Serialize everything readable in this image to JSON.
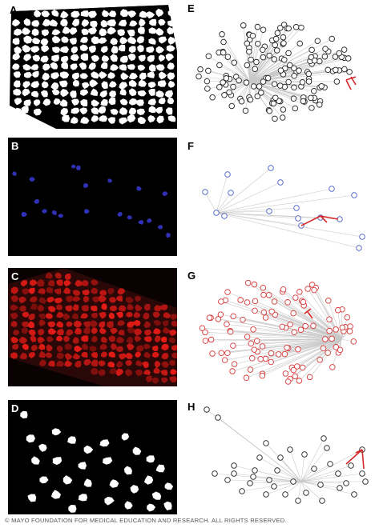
{
  "panels": {
    "a": "A",
    "b": "B",
    "c": "C",
    "d": "D",
    "e": "E",
    "f": "F",
    "g": "G",
    "h": "H"
  },
  "footer": "© MAYO FOUNDATION FOR MEDICAL EDUCATION AND RESEARCH. ALL RIGHTS RESERVED.",
  "colors": {
    "node_e": "#222222",
    "node_f": "#4a5fc1",
    "node_g": "#d83a3a",
    "node_h": "#222222",
    "edge": "#c8c8c8",
    "highlight": "#d42828",
    "nuclei": "#3a3ad8",
    "fiber_red": "#c8201c"
  }
}
